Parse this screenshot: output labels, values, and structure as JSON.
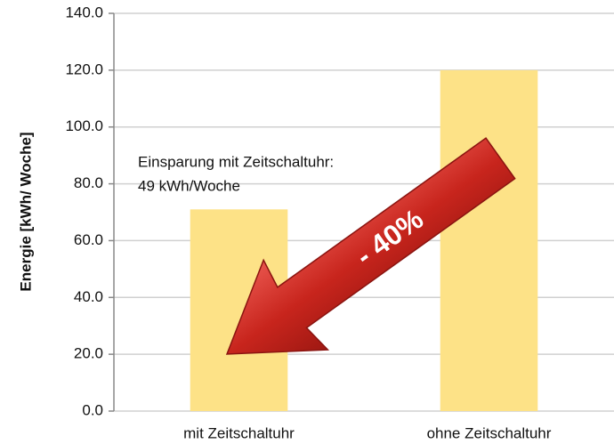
{
  "chart_data": {
    "type": "bar",
    "y_label": "Energie [kWh/ Woche]",
    "categories": [
      "mit Zeitschaltuhr",
      "ohne Zeitschaltuhr"
    ],
    "values": [
      71,
      120
    ],
    "color": "#fde287",
    "ylim": [
      0,
      140
    ],
    "yticks": [
      {
        "value": 0,
        "label": "0.0"
      },
      {
        "value": 20,
        "label": "20.0"
      },
      {
        "value": 40,
        "label": "40.0"
      },
      {
        "value": 60,
        "label": "60.0"
      },
      {
        "value": 80,
        "label": "80.0"
      },
      {
        "value": 100,
        "label": "100.0"
      },
      {
        "value": 120,
        "label": "120.0"
      },
      {
        "value": 140,
        "label": "140.0"
      }
    ],
    "grid": true,
    "annotations": [
      "Einsparung mit Zeitschaltuhr:",
      "49 kWh/Woche",
      "- 40%"
    ]
  }
}
